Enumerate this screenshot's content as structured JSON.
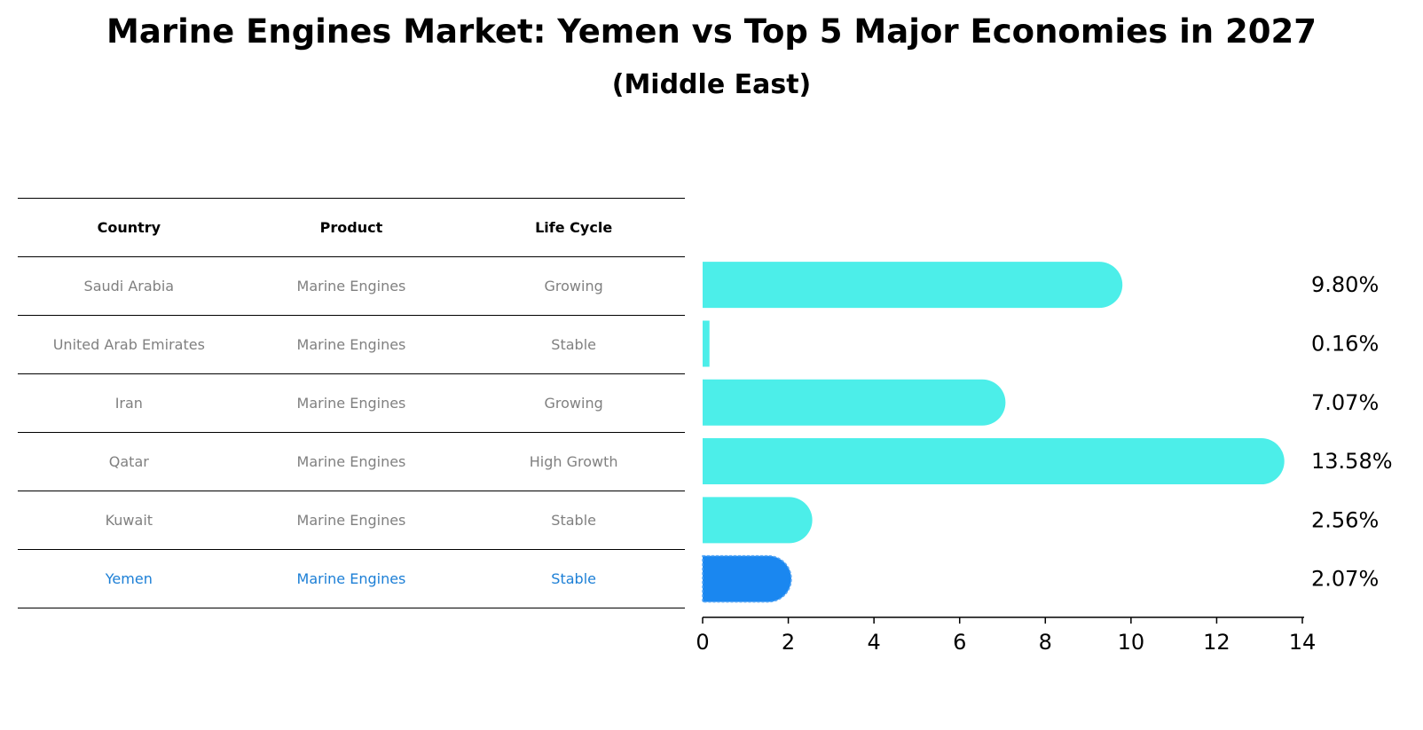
{
  "title": "Marine Engines Market: Yemen vs Top 5 Major Economies in 2027",
  "subtitle": "(Middle East)",
  "table": {
    "headers": [
      "Country",
      "Product",
      "Life Cycle"
    ],
    "rows": [
      {
        "country": "Saudi Arabia",
        "product": "Marine Engines",
        "life_cycle": "Growing"
      },
      {
        "country": "United Arab Emirates",
        "product": "Marine Engines",
        "life_cycle": "Stable"
      },
      {
        "country": "Iran",
        "product": "Marine Engines",
        "life_cycle": "Growing"
      },
      {
        "country": "Qatar",
        "product": "Marine Engines",
        "life_cycle": "High Growth"
      },
      {
        "country": "Kuwait",
        "product": "Marine Engines",
        "life_cycle": "Stable"
      },
      {
        "country": "Yemen",
        "product": "Marine Engines",
        "life_cycle": "Stable"
      }
    ]
  },
  "colors": {
    "bar": "#4ceee9",
    "highlight_bar": "#1a87f0",
    "highlight_text": "#1c7fd6",
    "row_text": "#808080"
  },
  "chart_data": {
    "type": "bar",
    "orientation": "horizontal",
    "categories": [
      "Saudi Arabia",
      "United Arab Emirates",
      "Iran",
      "Qatar",
      "Kuwait",
      "Yemen"
    ],
    "values": [
      9.8,
      0.16,
      7.07,
      13.58,
      2.56,
      2.07
    ],
    "value_labels": [
      "9.80%",
      "0.16%",
      "7.07%",
      "13.58%",
      "2.56%",
      "2.07%"
    ],
    "highlight": "Yemen",
    "xlim": [
      0,
      14
    ],
    "xticks": [
      0,
      2,
      4,
      6,
      8,
      10,
      12,
      14
    ],
    "xtick_labels": [
      "0",
      "2",
      "4",
      "6",
      "8",
      "10",
      "12",
      "14"
    ],
    "xlabel": "",
    "ylabel": "",
    "grid": false
  }
}
